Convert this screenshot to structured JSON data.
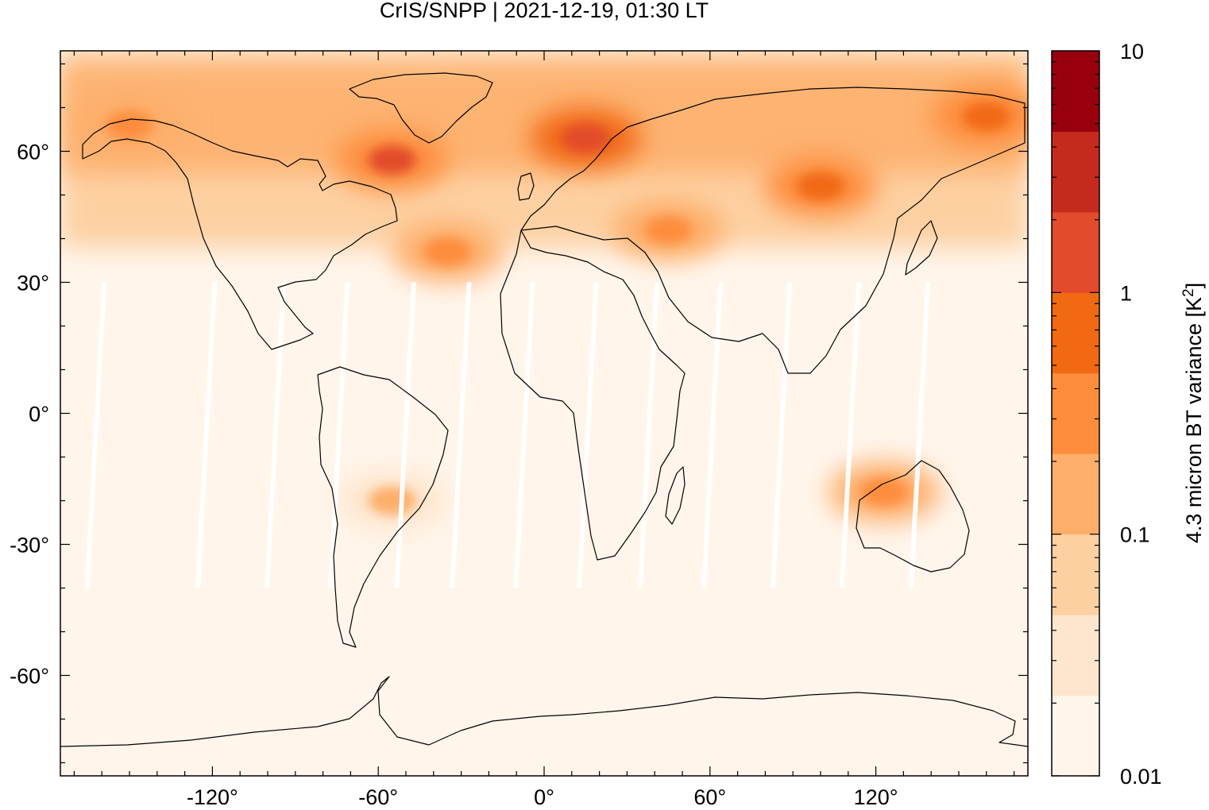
{
  "chart_data": {
    "type": "heatmap",
    "title": "CrIS/SNPP | 2021-12-19, 01:30 LT",
    "projection": "equirectangular world map with coastlines",
    "xlim": [
      -175,
      175
    ],
    "ylim": [
      -83,
      83
    ],
    "x_ticks": [
      -120,
      -60,
      0,
      60,
      120
    ],
    "x_tick_labels": [
      "-120°",
      "-60°",
      "0°",
      "60°",
      "120°"
    ],
    "y_ticks": [
      60,
      30,
      0,
      -30,
      -60
    ],
    "y_tick_labels": [
      "60°",
      "30°",
      "0°",
      "-30°",
      "-60°"
    ],
    "colorbar": {
      "label_prefix": "4.3 micron BT variance [K",
      "label_sup": "2",
      "label_suffix": "]",
      "scale": "log",
      "range": [
        0.01,
        10
      ],
      "tick_values": [
        0.01,
        0.1,
        1,
        10
      ],
      "tick_labels": [
        "0.01",
        "0.1",
        "1",
        "10"
      ],
      "levels": 9,
      "colors": [
        "#fff5eb",
        "#fee6ce",
        "#fdd0a2",
        "#fdae6b",
        "#fd8d3c",
        "#f16913",
        "#e24b2c",
        "#c52a1d",
        "#99000d"
      ]
    },
    "regions": [
      {
        "lon": -55,
        "lat": 58,
        "value": 1.0
      },
      {
        "lon": 15,
        "lat": 63,
        "value": 2.0
      },
      {
        "lon": 100,
        "lat": 52,
        "value": 0.8
      },
      {
        "lon": 160,
        "lat": 68,
        "value": 0.9
      },
      {
        "lon": 45,
        "lat": 42,
        "value": 0.4
      },
      {
        "lon": -35,
        "lat": 37,
        "value": 0.3
      },
      {
        "lon": -150,
        "lat": 66,
        "value": 0.4
      },
      {
        "lon": 123,
        "lat": -18,
        "value": 0.3
      },
      {
        "lon": -55,
        "lat": -20,
        "value": 0.1
      }
    ],
    "grid": false,
    "legend": "colorbar right"
  },
  "colors": {
    "background": "#fff5eb",
    "swath_gap": "#ffffff",
    "coastline": "#000000",
    "frame": "#000000"
  }
}
